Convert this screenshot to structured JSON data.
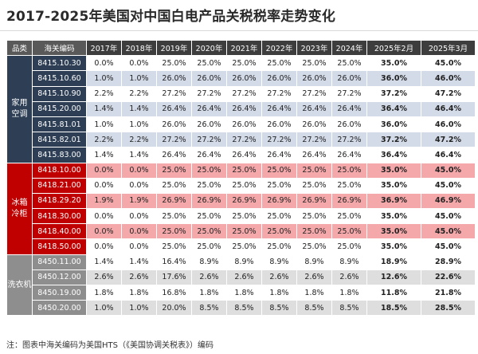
{
  "title": "2017-2025年美国对中国白电产品关税税率走势变化",
  "note": "注：图表中海关编码为美国HTS（《美国协调关税表》）编码",
  "table": {
    "headers": [
      "品类",
      "海关编码",
      "2017年",
      "2018年",
      "2019年",
      "2020年",
      "2021年",
      "2022年",
      "2023年",
      "2024年",
      "2025年2月",
      "2025年3月"
    ],
    "groups": [
      {
        "key": "ac",
        "category": "家用\n空调",
        "rows": [
          {
            "code": "8415.10.30",
            "values": [
              "0.0%",
              "0.0%",
              "25.0%",
              "25.0%",
              "25.0%",
              "25.0%",
              "25.0%",
              "25.0%",
              "35.0%",
              "45.0%"
            ]
          },
          {
            "code": "8415.10.60",
            "values": [
              "1.0%",
              "1.0%",
              "26.0%",
              "26.0%",
              "26.0%",
              "26.0%",
              "26.0%",
              "26.0%",
              "36.0%",
              "46.0%"
            ]
          },
          {
            "code": "8415.10.90",
            "values": [
              "2.2%",
              "2.2%",
              "27.2%",
              "27.2%",
              "27.2%",
              "27.2%",
              "27.2%",
              "27.2%",
              "37.2%",
              "47.2%"
            ]
          },
          {
            "code": "8415.20.00",
            "values": [
              "1.4%",
              "1.4%",
              "26.4%",
              "26.4%",
              "26.4%",
              "26.4%",
              "26.4%",
              "26.4%",
              "36.4%",
              "46.4%"
            ]
          },
          {
            "code": "8415.81.01",
            "values": [
              "1.0%",
              "1.0%",
              "26.0%",
              "26.0%",
              "26.0%",
              "26.0%",
              "26.0%",
              "26.0%",
              "36.0%",
              "46.0%"
            ]
          },
          {
            "code": "8415.82.01",
            "values": [
              "2.2%",
              "2.2%",
              "27.2%",
              "27.2%",
              "27.2%",
              "27.2%",
              "27.2%",
              "27.2%",
              "37.2%",
              "47.2%"
            ]
          },
          {
            "code": "8415.83.00",
            "values": [
              "1.4%",
              "1.4%",
              "26.4%",
              "26.4%",
              "26.4%",
              "26.4%",
              "26.4%",
              "26.4%",
              "36.4%",
              "46.4%"
            ]
          }
        ]
      },
      {
        "key": "fr",
        "category": "冰箱\n冷柜",
        "rows": [
          {
            "code": "8418.10.00",
            "values": [
              "0.0%",
              "0.0%",
              "25.0%",
              "25.0%",
              "25.0%",
              "25.0%",
              "25.0%",
              "25.0%",
              "35.0%",
              "45.0%"
            ]
          },
          {
            "code": "8418.21.00",
            "values": [
              "0.0%",
              "0.0%",
              "25.0%",
              "25.0%",
              "25.0%",
              "25.0%",
              "25.0%",
              "25.0%",
              "35.0%",
              "45.0%"
            ]
          },
          {
            "code": "8418.29.20",
            "values": [
              "1.9%",
              "1.9%",
              "26.9%",
              "26.9%",
              "26.9%",
              "26.9%",
              "26.9%",
              "26.9%",
              "36.9%",
              "46.9%"
            ]
          },
          {
            "code": "8418.30.00",
            "values": [
              "0.0%",
              "0.0%",
              "25.0%",
              "25.0%",
              "25.0%",
              "25.0%",
              "25.0%",
              "25.0%",
              "35.0%",
              "45.0%"
            ]
          },
          {
            "code": "8418.40.00",
            "values": [
              "0.0%",
              "0.0%",
              "25.0%",
              "25.0%",
              "25.0%",
              "25.0%",
              "25.0%",
              "25.0%",
              "35.0%",
              "45.0%"
            ]
          },
          {
            "code": "8418.50.00",
            "values": [
              "0.0%",
              "0.0%",
              "25.0%",
              "25.0%",
              "25.0%",
              "25.0%",
              "25.0%",
              "25.0%",
              "35.0%",
              "45.0%"
            ]
          }
        ]
      },
      {
        "key": "wm",
        "category": "洗衣机",
        "rows": [
          {
            "code": "8450.11.00",
            "values": [
              "1.4%",
              "1.4%",
              "16.4%",
              "8.9%",
              "8.9%",
              "8.9%",
              "8.9%",
              "8.9%",
              "18.9%",
              "28.9%"
            ]
          },
          {
            "code": "8450.12.00",
            "values": [
              "2.6%",
              "2.6%",
              "17.6%",
              "2.6%",
              "2.6%",
              "2.6%",
              "2.6%",
              "2.6%",
              "12.6%",
              "22.6%"
            ]
          },
          {
            "code": "8450.19.00",
            "values": [
              "1.8%",
              "1.8%",
              "16.8%",
              "1.8%",
              "1.8%",
              "1.8%",
              "1.8%",
              "1.8%",
              "11.8%",
              "21.8%"
            ]
          },
          {
            "code": "8450.20.00",
            "values": [
              "1.0%",
              "1.0%",
              "20.0%",
              "8.5%",
              "8.5%",
              "8.5%",
              "8.5%",
              "8.5%",
              "18.5%",
              "28.5%"
            ]
          }
        ]
      }
    ]
  }
}
